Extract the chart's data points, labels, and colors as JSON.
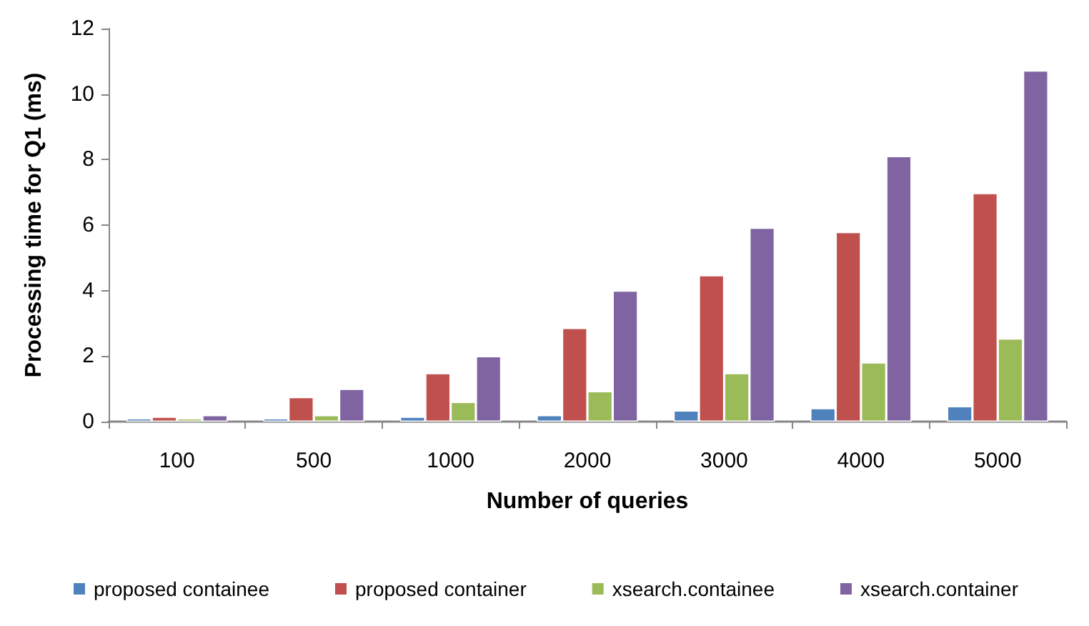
{
  "chart_data": {
    "type": "bar",
    "xlabel": "Number of queries",
    "ylabel": "Processing time for Q1 (ms)",
    "categories": [
      "100",
      "500",
      "1000",
      "2000",
      "3000",
      "4000",
      "5000"
    ],
    "series": [
      {
        "name": "proposed containee",
        "color": "#4f81bd",
        "values": [
          0.1,
          0.1,
          0.15,
          0.2,
          0.34,
          0.41,
          0.47
        ]
      },
      {
        "name": "proposed container",
        "color": "#c0504d",
        "values": [
          0.15,
          0.75,
          1.48,
          2.86,
          4.47,
          5.79,
          6.98
        ]
      },
      {
        "name": "xsearch.containee",
        "color": "#9bbb59",
        "values": [
          0.1,
          0.2,
          0.6,
          0.93,
          1.48,
          1.81,
          2.54
        ]
      },
      {
        "name": "xsearch.container",
        "color": "#8064a2",
        "values": [
          0.2,
          1.0,
          2.0,
          4.0,
          5.92,
          8.11,
          10.72
        ]
      }
    ],
    "ylim": [
      0,
      12
    ],
    "yticks": [
      0,
      2,
      4,
      6,
      8,
      10,
      12
    ],
    "grid": false,
    "legend": "bottom"
  }
}
